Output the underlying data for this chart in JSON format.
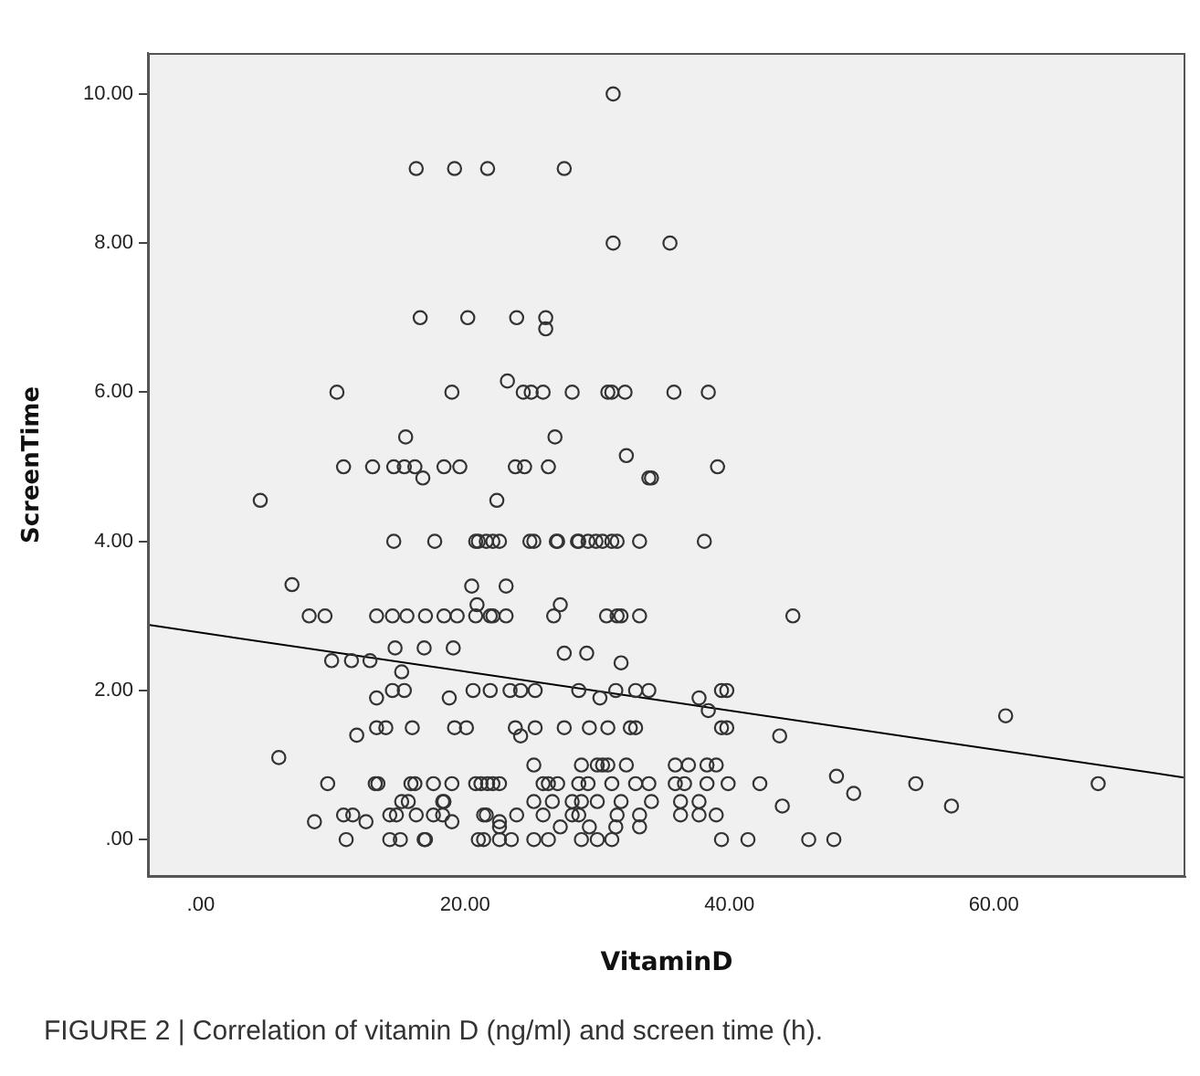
{
  "chart_data": {
    "type": "scatter",
    "xlabel": "VitaminD",
    "ylabel": "ScreenTime",
    "annotations": [
      "FIGURE 2 | Correlation of vitamin D (ng/ml) and screen time (h)."
    ],
    "xlim": [
      -4,
      74.5
    ],
    "ylim": [
      -0.5,
      10.55
    ],
    "xticks": [
      {
        "value": 0,
        "label": ".00"
      },
      {
        "value": 20,
        "label": "20.00"
      },
      {
        "value": 40,
        "label": "40.00"
      },
      {
        "value": 60,
        "label": "60.00"
      }
    ],
    "yticks": [
      {
        "value": 0,
        "label": ".00"
      },
      {
        "value": 2,
        "label": "2.00"
      },
      {
        "value": 4,
        "label": "4.00"
      },
      {
        "value": 6,
        "label": "6.00"
      },
      {
        "value": 8,
        "label": "8.00"
      },
      {
        "value": 10,
        "label": "10.00"
      }
    ],
    "grid": false,
    "legend": false,
    "marker": "circle",
    "series": [
      {
        "color": "#333333",
        "x": [
          31.2,
          16.3,
          19.2,
          21.7,
          27.5,
          31.2,
          35.5,
          16.6,
          20.2,
          23.9,
          26.1,
          26.1,
          10.3,
          19.0,
          23.2,
          24.4,
          25.0,
          25.9,
          28.1,
          30.8,
          31.1,
          32.1,
          35.8,
          38.4,
          15.5,
          26.8,
          10.8,
          13.0,
          14.6,
          15.4,
          16.2,
          16.8,
          18.4,
          19.6,
          23.8,
          24.5,
          26.3,
          32.2,
          33.9,
          34.1,
          39.1,
          4.5,
          22.4,
          14.6,
          17.7,
          21.0,
          21.6,
          22.1,
          24.9,
          25.2,
          26.9,
          28.5,
          27.0,
          28.6,
          29.3,
          29.9,
          30.4,
          31.1,
          31.5,
          38.1,
          20.8,
          22.6,
          33.2,
          6.9,
          20.5,
          23.1,
          8.2,
          9.4,
          13.3,
          14.5,
          15.6,
          17.0,
          18.4,
          19.4,
          20.8,
          21.9,
          20.9,
          22.1,
          23.1,
          26.7,
          27.2,
          30.7,
          31.5,
          31.8,
          33.2,
          44.8,
          14.7,
          16.9,
          19.1,
          27.5,
          29.2,
          31.8,
          9.9,
          11.4,
          12.8,
          15.2,
          13.3,
          14.5,
          15.4,
          18.8,
          20.6,
          21.9,
          23.4,
          24.2,
          25.3,
          28.6,
          30.2,
          31.4,
          32.9,
          33.9,
          37.7,
          38.4,
          39.4,
          39.8,
          13.3,
          14.0,
          16.0,
          19.2,
          20.1,
          23.8,
          24.2,
          25.3,
          27.5,
          29.4,
          30.8,
          32.5,
          32.9,
          39.4,
          39.8,
          43.8,
          11.8,
          5.9,
          25.2,
          28.8,
          30.0,
          30.4,
          30.8,
          32.2,
          35.9,
          36.9,
          38.3,
          39.0,
          48.1,
          54.1,
          67.9,
          60.9,
          49.4,
          56.8,
          42.3,
          44.0,
          9.6,
          13.2,
          13.4,
          15.9,
          16.2,
          17.6,
          19.0,
          20.8,
          21.2,
          21.7,
          22.6,
          22.1,
          25.9,
          26.3,
          27.0,
          28.6,
          29.3,
          31.1,
          32.9,
          33.9,
          35.9,
          36.6,
          38.3,
          39.9,
          10.8,
          11.5,
          14.3,
          14.8,
          16.3,
          17.6,
          18.3,
          21.6,
          21.4,
          23.9,
          25.9,
          28.1,
          28.6,
          31.5,
          33.2,
          36.3,
          37.7,
          39.0,
          15.2,
          15.7,
          18.3,
          18.4,
          25.2,
          26.6,
          28.1,
          28.8,
          30.0,
          31.8,
          34.1,
          36.3,
          37.7,
          8.6,
          12.5,
          19.0,
          22.6,
          22.6,
          27.2,
          29.4,
          31.4,
          33.2,
          11.0,
          14.3,
          15.1,
          16.9,
          17.0,
          21.0,
          21.4,
          22.6,
          23.5,
          25.2,
          26.3,
          28.8,
          30.0,
          31.1,
          39.4,
          41.4,
          46.0,
          47.9
        ],
        "values": [
          10,
          9,
          9,
          9,
          9,
          8,
          8,
          7,
          7,
          7,
          7,
          6.85,
          6,
          6,
          6.15,
          6,
          6,
          6,
          6,
          6,
          6,
          6,
          6,
          6,
          5.4,
          5.4,
          5,
          5,
          5,
          5,
          5,
          4.85,
          5,
          5,
          5,
          5,
          5,
          5.15,
          4.85,
          4.85,
          5,
          4.55,
          4.55,
          4,
          4,
          4,
          4,
          4,
          4,
          4,
          4,
          4,
          4,
          4,
          4,
          4,
          4,
          4,
          4,
          4,
          4,
          4,
          4,
          3.42,
          3.4,
          3.4,
          3,
          3,
          3,
          3,
          3,
          3,
          3,
          3,
          3,
          3,
          3.15,
          3,
          3,
          3,
          3.15,
          3,
          3,
          3,
          3,
          3,
          2.57,
          2.57,
          2.57,
          2.5,
          2.5,
          2.37,
          2.4,
          2.4,
          2.4,
          2.25,
          1.9,
          2,
          2,
          1.9,
          2,
          2,
          2,
          2,
          2,
          2,
          1.9,
          2,
          2,
          2,
          1.9,
          1.73,
          2,
          2,
          1.5,
          1.5,
          1.5,
          1.5,
          1.5,
          1.5,
          1.39,
          1.5,
          1.5,
          1.5,
          1.5,
          1.5,
          1.5,
          1.5,
          1.5,
          1.39,
          1.4,
          1.1,
          1,
          1,
          1,
          1,
          1,
          1,
          1,
          1,
          1,
          1,
          0.85,
          0.75,
          0.75,
          1.66,
          0.62,
          0.45,
          0.75,
          0.45,
          0.75,
          0.75,
          0.75,
          0.75,
          0.75,
          0.75,
          0.75,
          0.75,
          0.75,
          0.75,
          0.75,
          0.75,
          0.75,
          0.75,
          0.75,
          0.75,
          0.75,
          0.75,
          0.75,
          0.75,
          0.75,
          0.75,
          0.75,
          0.75,
          0.33,
          0.33,
          0.33,
          0.33,
          0.33,
          0.33,
          0.33,
          0.33,
          0.33,
          0.33,
          0.33,
          0.33,
          0.33,
          0.33,
          0.33,
          0.33,
          0.33,
          0.33,
          0.51,
          0.51,
          0.51,
          0.51,
          0.51,
          0.51,
          0.51,
          0.51,
          0.51,
          0.51,
          0.51,
          0.51,
          0.51,
          0.24,
          0.24,
          0.24,
          0.24,
          0.17,
          0.17,
          0.17,
          0.17,
          0.17,
          0,
          0,
          0,
          0,
          0,
          0,
          0,
          0,
          0,
          0,
          0,
          0,
          0,
          0,
          0,
          0,
          0,
          0
        ]
      },
      {
        "type": "line",
        "color": "#000000",
        "marker": "none",
        "x": [
          -4,
          74.5
        ],
        "values": [
          2.88,
          0.83
        ]
      }
    ]
  }
}
